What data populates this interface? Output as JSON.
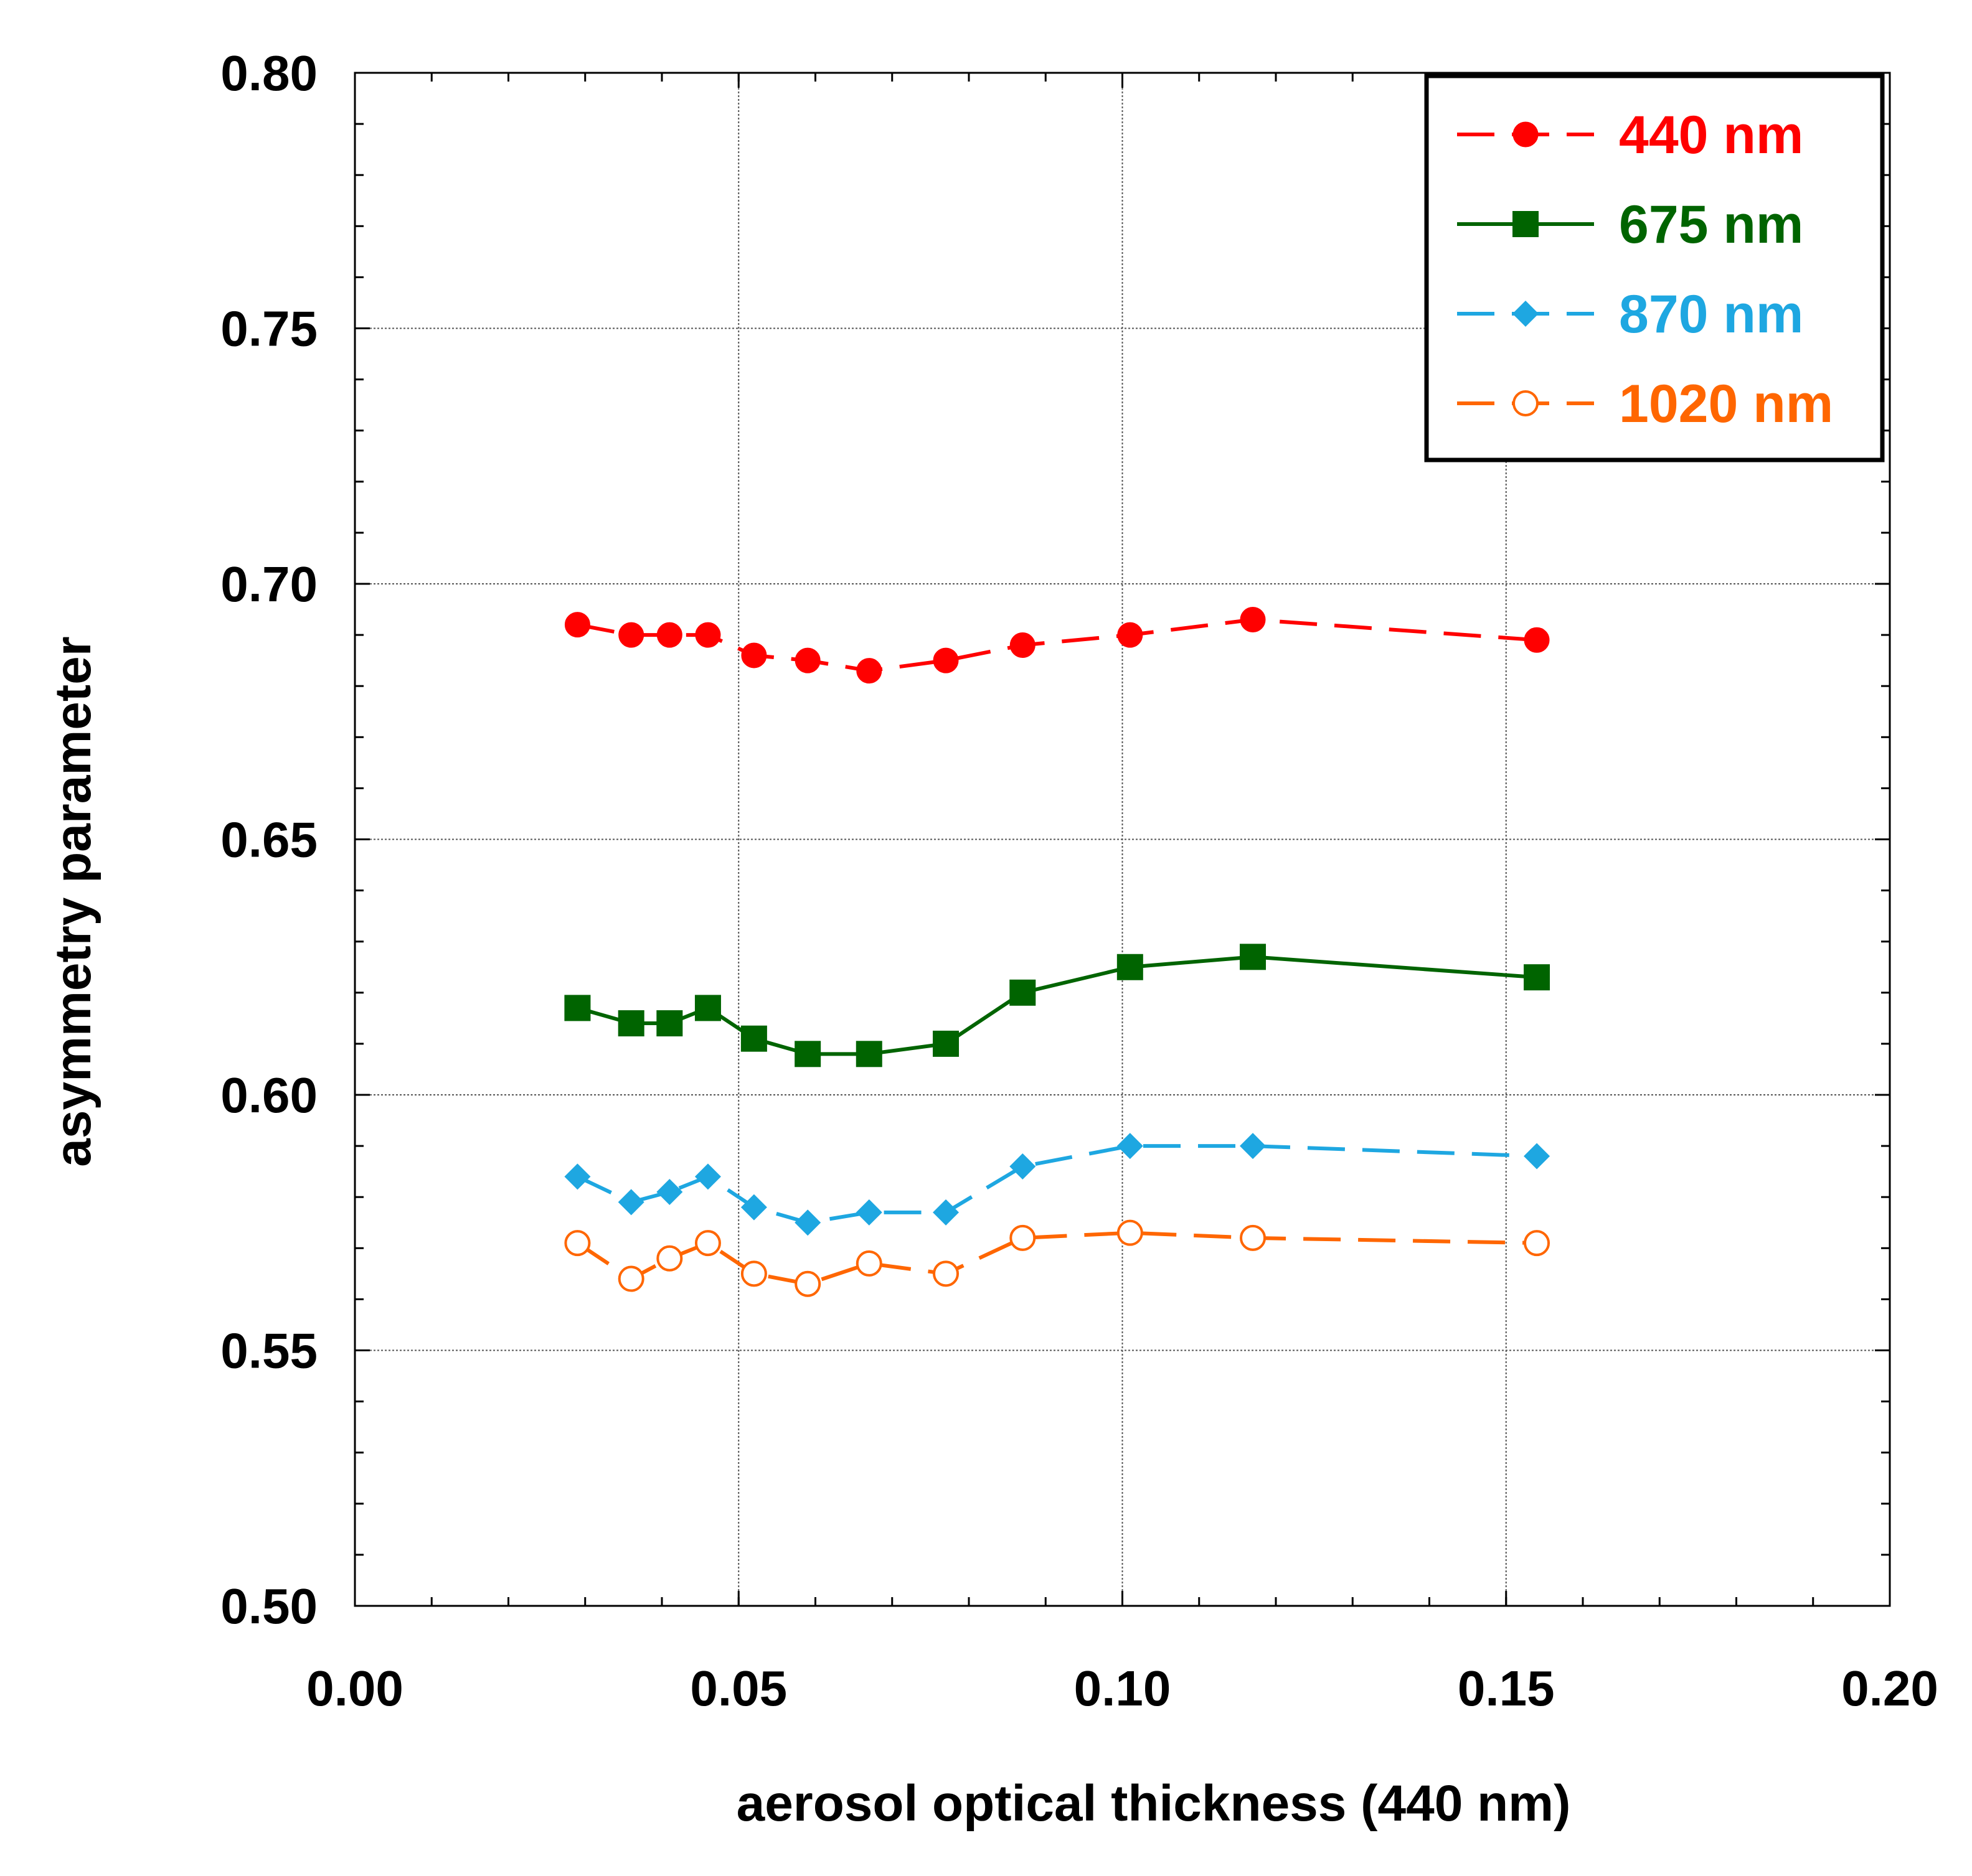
{
  "chart_data": {
    "type": "line",
    "title": "",
    "xlabel": "aerosol optical thickness (440 nm)",
    "ylabel": "asymmetry parameter",
    "xlim": [
      0.0,
      0.2
    ],
    "ylim": [
      0.5,
      0.8
    ],
    "xticks": [
      0.0,
      0.05,
      0.1,
      0.15,
      0.2
    ],
    "xtick_labels": [
      "0.00",
      "0.05",
      "0.10",
      "0.15",
      "0.20"
    ],
    "yticks": [
      0.5,
      0.55,
      0.6,
      0.65,
      0.7,
      0.75,
      0.8
    ],
    "ytick_labels": [
      "0.50",
      "0.55",
      "0.60",
      "0.65",
      "0.70",
      "0.75",
      "0.80"
    ],
    "grid": true,
    "legend_position": "top-right",
    "x": [
      0.029,
      0.036,
      0.041,
      0.046,
      0.052,
      0.059,
      0.067,
      0.077,
      0.087,
      0.101,
      0.117,
      0.154
    ],
    "series": [
      {
        "name": "440 nm",
        "color": "#ff0000",
        "marker": "circle-filled",
        "line": "dashed",
        "values": [
          0.692,
          0.69,
          0.69,
          0.69,
          0.686,
          0.685,
          0.683,
          0.685,
          0.688,
          0.69,
          0.693,
          0.689
        ]
      },
      {
        "name": "675 nm",
        "color": "#006400",
        "marker": "square-filled",
        "line": "solid",
        "values": [
          0.617,
          0.614,
          0.614,
          0.617,
          0.611,
          0.608,
          0.608,
          0.61,
          0.62,
          0.625,
          0.627,
          0.623
        ]
      },
      {
        "name": "870 nm",
        "color": "#1ea7e1",
        "marker": "diamond-filled",
        "line": "dashed",
        "values": [
          0.584,
          0.579,
          0.581,
          0.584,
          0.578,
          0.575,
          0.577,
          0.577,
          0.586,
          0.59,
          0.59,
          0.588
        ]
      },
      {
        "name": "1020 nm",
        "color": "#ff6600",
        "marker": "circle-open",
        "line": "dashed",
        "values": [
          0.571,
          0.564,
          0.568,
          0.571,
          0.565,
          0.563,
          0.567,
          0.565,
          0.572,
          0.573,
          0.572,
          0.571
        ]
      }
    ]
  }
}
